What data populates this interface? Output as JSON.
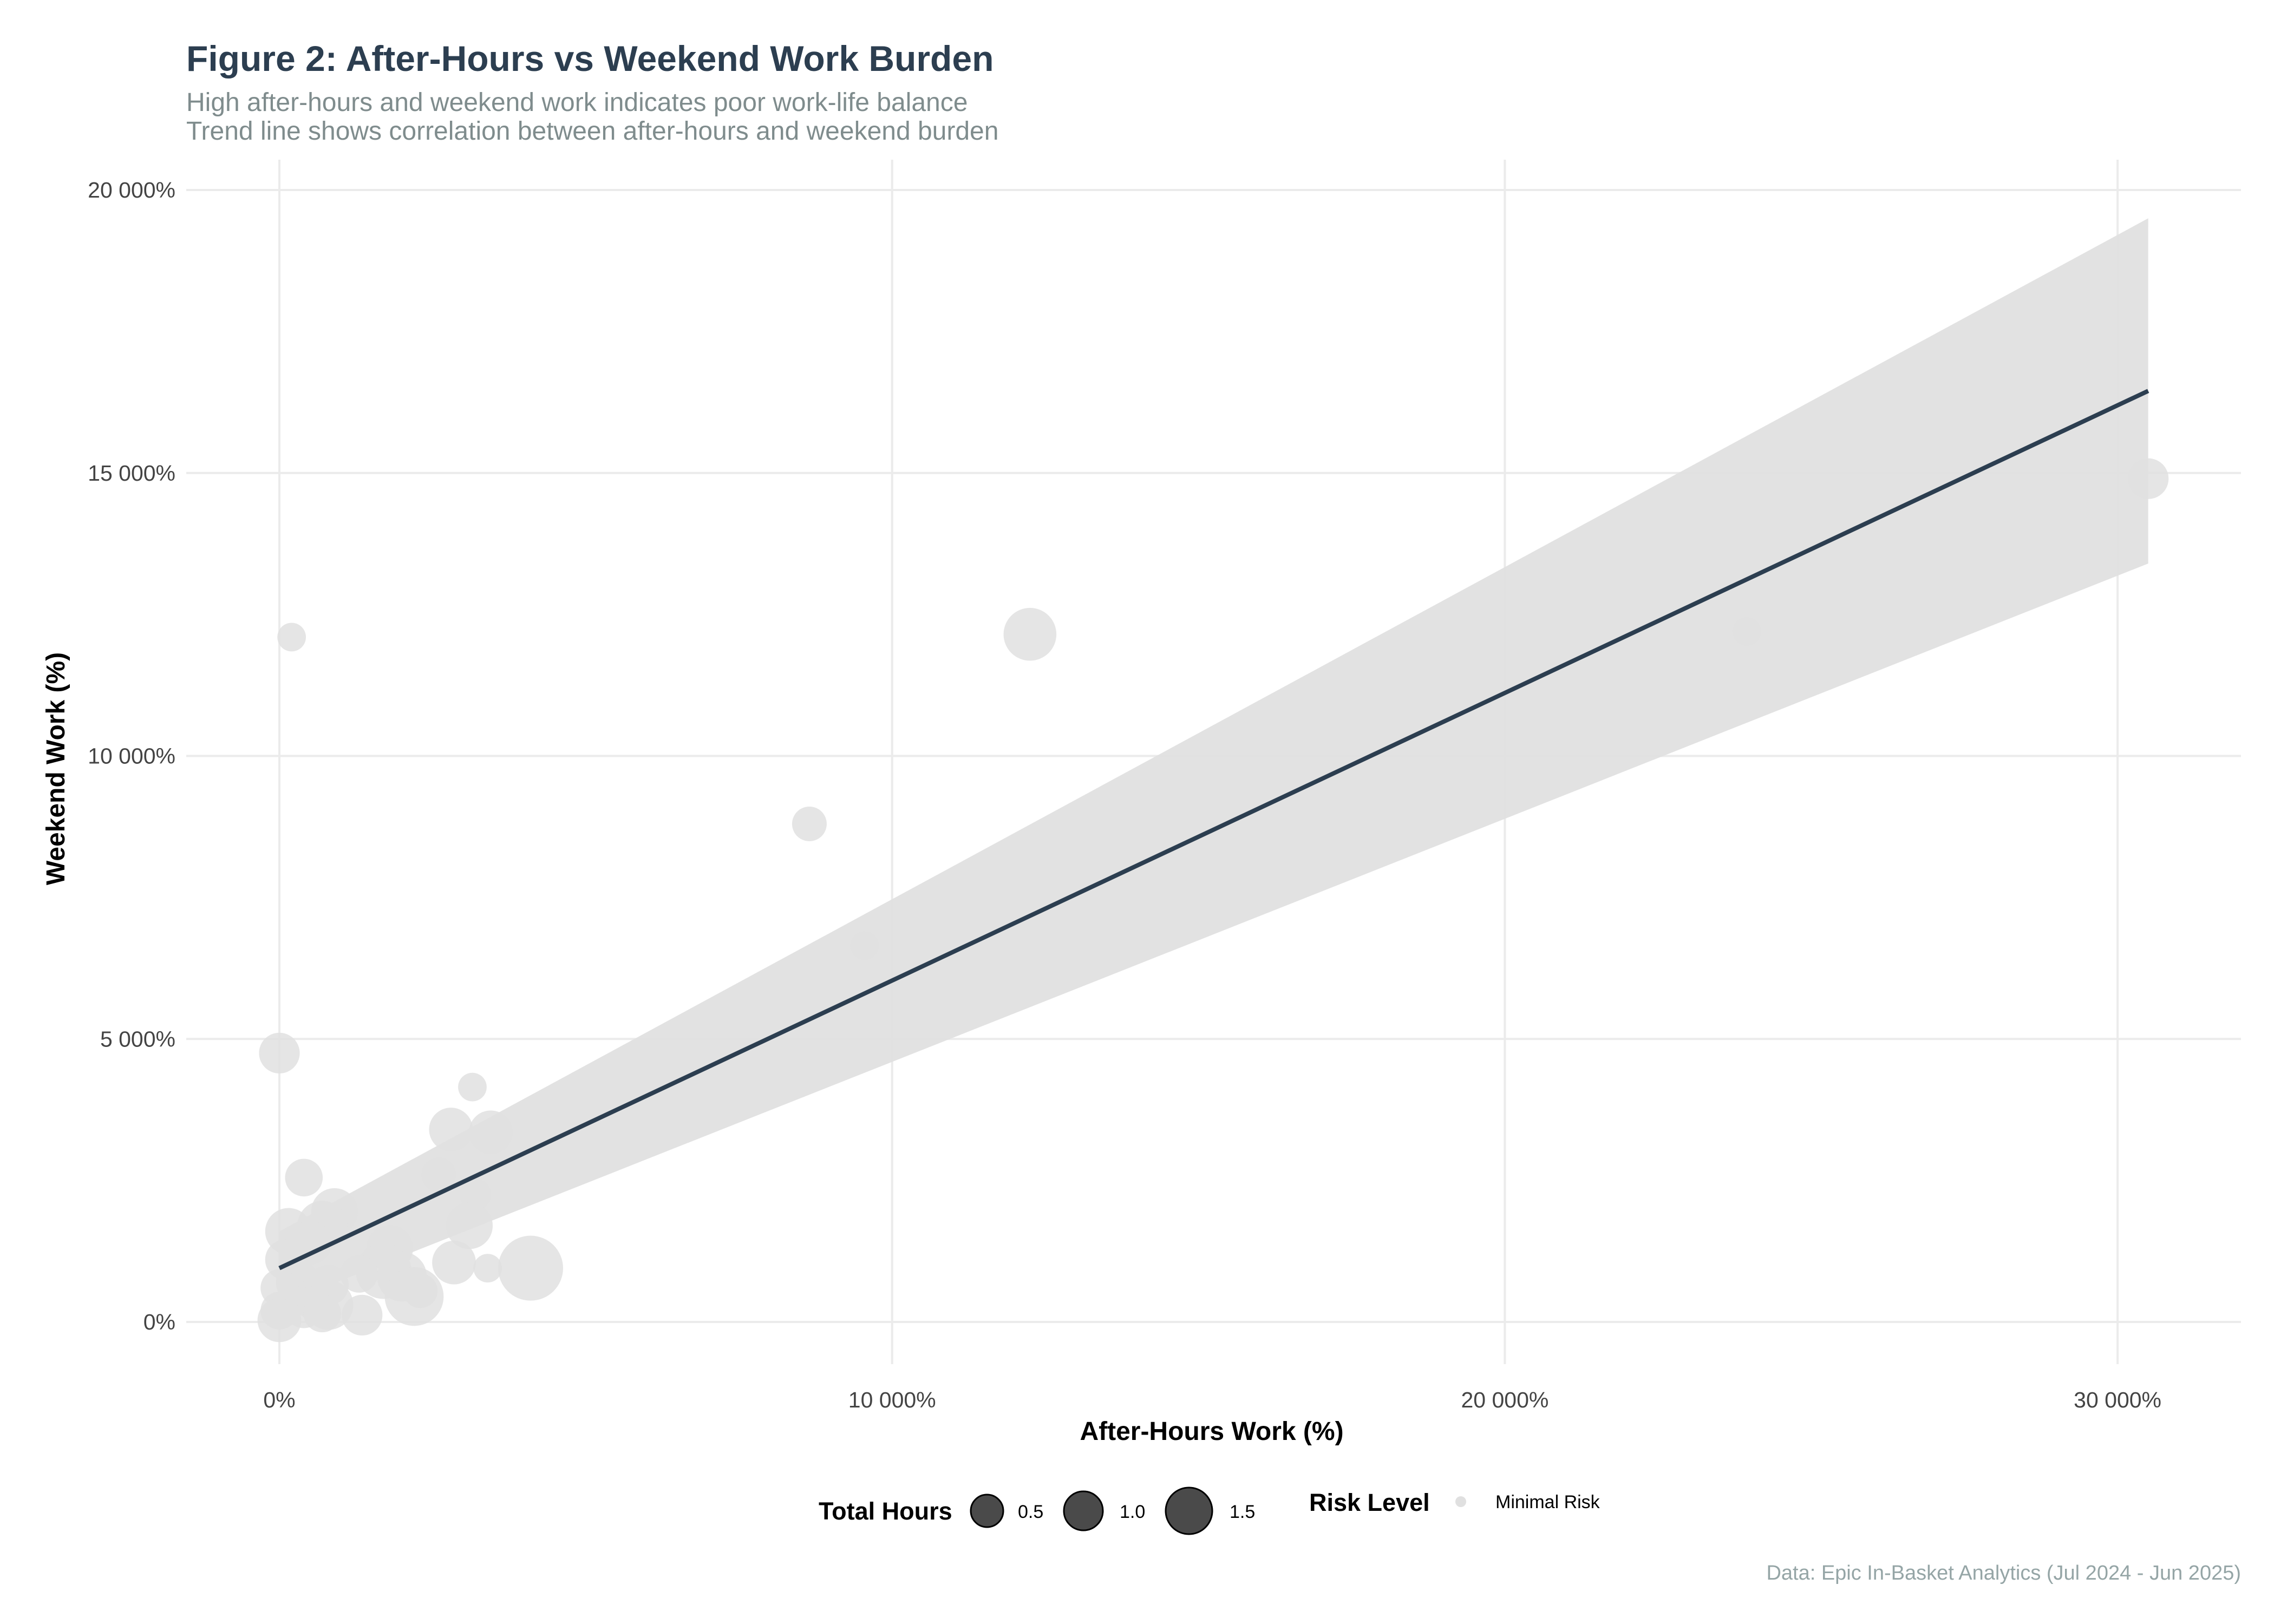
{
  "chart_data": {
    "type": "scatter",
    "title": "Figure 2: After-Hours vs Weekend Work Burden",
    "subtitle": [
      "High after-hours and weekend work indicates poor work-life balance",
      "Trend line shows correlation between after-hours and weekend burden"
    ],
    "xlabel": "After-Hours Work (%)",
    "ylabel": "Weekend Work (%)",
    "caption": "Data: Epic In-Basket Analytics (Jul 2024 - Jun 2025)",
    "xlim": [
      -1500,
      32000
    ],
    "ylim": [
      -700,
      20500
    ],
    "x_ticks": [
      0,
      10000,
      20000,
      30000
    ],
    "x_tick_labels": [
      "0%",
      "10 000%",
      "20 000%",
      "30 000%"
    ],
    "y_ticks": [
      0,
      5000,
      10000,
      15000,
      20000
    ],
    "y_tick_labels": [
      "0%",
      "5 000%",
      "10 000%",
      "15 000%",
      "20 000%"
    ],
    "grid": true,
    "colors": {
      "points": "#e0e0e0",
      "trend_line": "#2c3e50",
      "confidence_band": "#e0e0e0",
      "legend_points": "#4a4a4a"
    },
    "trend_line": {
      "x": [
        0,
        30500
      ],
      "y": [
        950,
        16450
      ],
      "band_lower": [
        300,
        13400
      ],
      "band_upper": [
        1600,
        19500
      ]
    },
    "points": [
      {
        "x": 30500,
        "y": 14900,
        "size": 0.7
      },
      {
        "x": 23950,
        "y": 12200,
        "size": 0.3
      },
      {
        "x": 12250,
        "y": 12150,
        "size": 1.1
      },
      {
        "x": 200,
        "y": 12100,
        "size": 0.3
      },
      {
        "x": 8650,
        "y": 8800,
        "size": 0.5
      },
      {
        "x": 9550,
        "y": 6650,
        "size": 0.3
      },
      {
        "x": 0,
        "y": 4750,
        "size": 0.7
      },
      {
        "x": 3150,
        "y": 4150,
        "size": 0.3
      },
      {
        "x": 2800,
        "y": 3400,
        "size": 0.8
      },
      {
        "x": 3450,
        "y": 3350,
        "size": 0.8
      },
      {
        "x": 2600,
        "y": 2600,
        "size": 0.5
      },
      {
        "x": 400,
        "y": 2550,
        "size": 0.6
      },
      {
        "x": 3200,
        "y": 2250,
        "size": 0.4
      },
      {
        "x": 900,
        "y": 1950,
        "size": 0.9
      },
      {
        "x": 700,
        "y": 1700,
        "size": 1.0
      },
      {
        "x": 3100,
        "y": 1700,
        "size": 0.9
      },
      {
        "x": 150,
        "y": 1600,
        "size": 0.9
      },
      {
        "x": 500,
        "y": 1400,
        "size": 0.8
      },
      {
        "x": 1800,
        "y": 1300,
        "size": 0.9
      },
      {
        "x": 100,
        "y": 1100,
        "size": 0.7
      },
      {
        "x": 2850,
        "y": 1050,
        "size": 0.8
      },
      {
        "x": 3400,
        "y": 950,
        "size": 0.3
      },
      {
        "x": 4100,
        "y": 950,
        "size": 1.5
      },
      {
        "x": 1700,
        "y": 900,
        "size": 1.2
      },
      {
        "x": 1300,
        "y": 850,
        "size": 0.6
      },
      {
        "x": 2000,
        "y": 800,
        "size": 1.0
      },
      {
        "x": 300,
        "y": 700,
        "size": 0.8
      },
      {
        "x": 800,
        "y": 650,
        "size": 0.7
      },
      {
        "x": 0,
        "y": 600,
        "size": 0.6
      },
      {
        "x": 2300,
        "y": 550,
        "size": 0.5
      },
      {
        "x": 2200,
        "y": 450,
        "size": 1.3
      },
      {
        "x": 600,
        "y": 400,
        "size": 0.8
      },
      {
        "x": 800,
        "y": 300,
        "size": 1.0
      },
      {
        "x": 400,
        "y": 250,
        "size": 0.7
      },
      {
        "x": 0,
        "y": 200,
        "size": 0.6
      },
      {
        "x": 700,
        "y": 150,
        "size": 0.6
      },
      {
        "x": 1350,
        "y": 120,
        "size": 0.7
      },
      {
        "x": 0,
        "y": 30,
        "size": 0.8
      }
    ],
    "legend": {
      "size_title": "Total Hours",
      "size_values": [
        0.5,
        1.0,
        1.5
      ],
      "size_labels": [
        "0.5",
        "1.0",
        "1.5"
      ],
      "color_title": "Risk Level",
      "color_labels": [
        "Minimal Risk"
      ],
      "placement": "bottom"
    }
  }
}
